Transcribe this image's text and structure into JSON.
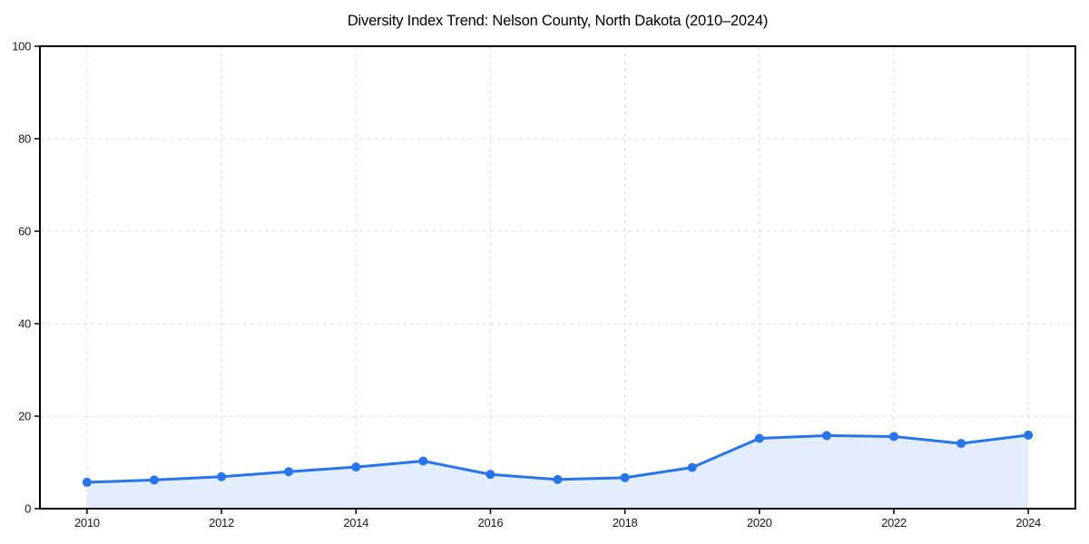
{
  "page": {
    "background": "#ffffff"
  },
  "chart_data": {
    "type": "line",
    "title": "Diversity Index Trend: Nelson County, North Dakota (2010–2024)",
    "series_name": "Diversity Index",
    "x": [
      2010,
      2011,
      2012,
      2013,
      2014,
      2015,
      2016,
      2017,
      2018,
      2019,
      2020,
      2021,
      2022,
      2023,
      2024
    ],
    "values": [
      5.7,
      6.2,
      6.9,
      8.0,
      9.0,
      10.3,
      7.4,
      6.3,
      6.7,
      8.9,
      15.2,
      15.8,
      15.6,
      14.1,
      15.9
    ],
    "xlabel": "",
    "ylabel": "",
    "xlim": [
      2009.3,
      2024.7
    ],
    "ylim": [
      0,
      100
    ],
    "xticks": [
      2010,
      2012,
      2014,
      2016,
      2018,
      2020,
      2022,
      2024
    ],
    "yticks": [
      0,
      20,
      40,
      60,
      80,
      100
    ],
    "grid": true,
    "grid_style": "dashed",
    "legend_position": "none",
    "marker": "circle",
    "area_fill": true,
    "colors": {
      "line": "#2675ec",
      "marker": "#2675ec",
      "fill": "#e4edfb",
      "grid": "#dddddd",
      "axis": "#000000",
      "tick_text": "#1a1a1a",
      "background": "#ffffff"
    }
  }
}
